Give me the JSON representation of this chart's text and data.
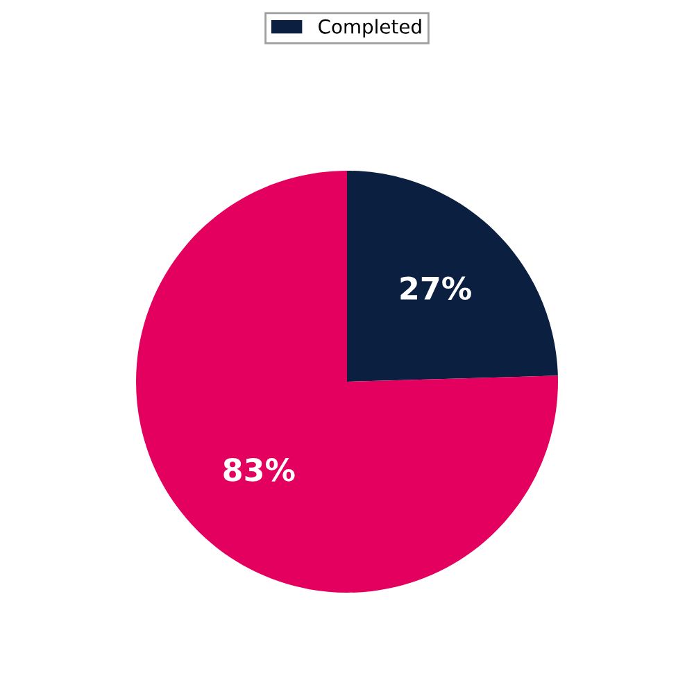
{
  "chart_data": {
    "type": "pie",
    "categories": [
      "Completed",
      null
    ],
    "values": [
      27,
      83
    ],
    "colors": [
      "#0b1f40",
      "#e4005e"
    ],
    "value_labels": [
      "27%",
      "83%"
    ],
    "legend": "top"
  }
}
